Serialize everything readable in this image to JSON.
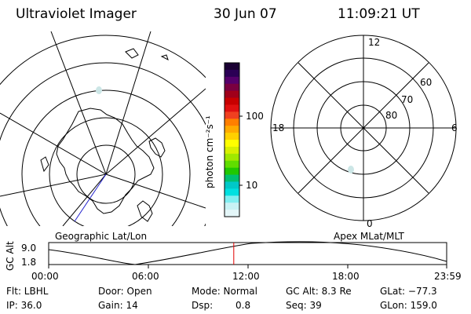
{
  "header": {
    "instrument": "Ultraviolet Imager",
    "date": "30 Jun 07",
    "time": "11:09:21 UT"
  },
  "colorbar": {
    "unit_label": "photon cm⁻²s⁻¹",
    "tick_100": "100",
    "tick_10": "10",
    "colors": [
      "#1a0033",
      "#2b0055",
      "#55006b",
      "#7a0040",
      "#a0001a",
      "#c80000",
      "#e01010",
      "#f04020",
      "#ff7f00",
      "#ffaa00",
      "#ffd000",
      "#ffff00",
      "#d8f000",
      "#a0e800",
      "#60dd00",
      "#20c800",
      "#00c070",
      "#00c8c8",
      "#00e0e0",
      "#80eef0",
      "#c8f2f4",
      "#e4f6f8"
    ]
  },
  "left_panel": {
    "caption": "Geographic Lat/Lon"
  },
  "right_panel": {
    "caption": "Apex MLat/MLT",
    "mlt_labels": {
      "top": "12",
      "left": "18",
      "right": "6",
      "bottom": "0"
    },
    "mlat_labels": [
      "80",
      "70",
      "60"
    ]
  },
  "timeline": {
    "y_label": "GC Alt",
    "y_max": "9.0",
    "y_min": "1.8",
    "ticks": [
      "00:00",
      "06:00",
      "12:00",
      "18:00",
      "23:59"
    ],
    "current_time_fraction": 0.465
  },
  "info": {
    "flt": "Flt: LBHL",
    "ip": "IP: 36.0",
    "door": "Door: Open",
    "gain": "Gain: 14",
    "mode": "Mode: Normal",
    "dsp_label": "Dsp:",
    "dsp_value": "0.8",
    "gc_alt": "GC Alt: 8.3 Re",
    "seq": "Seq: 39",
    "glat": "GLat: −77.3",
    "glon": "GLon: 159.0"
  }
}
